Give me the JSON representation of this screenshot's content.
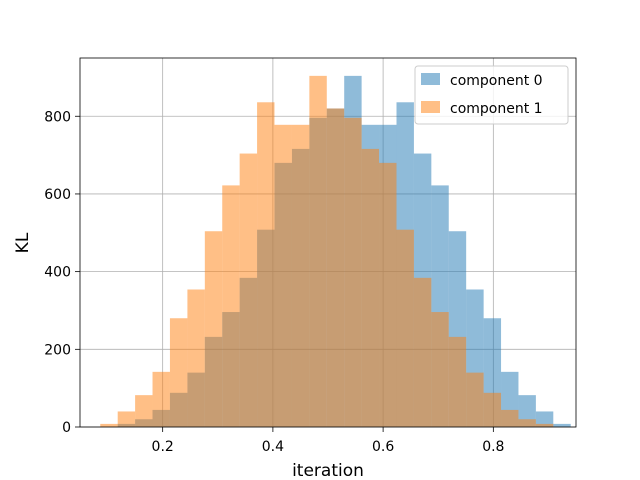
{
  "chart_data": {
    "type": "bar",
    "title": "",
    "xlabel": "iteration",
    "ylabel": "KL",
    "xlim": [
      0.05,
      0.95
    ],
    "ylim": [
      0,
      950
    ],
    "xticks": [
      0.2,
      0.4,
      0.6,
      0.8
    ],
    "xtick_labels": [
      "0.2",
      "0.4",
      "0.6",
      "0.8"
    ],
    "yticks": [
      0,
      200,
      400,
      600,
      800
    ],
    "ytick_labels": [
      "0",
      "200",
      "400",
      "600",
      "800"
    ],
    "grid": true,
    "legend_position": "top-right",
    "alpha": 0.5,
    "series": [
      {
        "name": "component 0",
        "color": "#1f77b4",
        "bins": [
          {
            "x0": 0.1184,
            "x1": 0.15,
            "y": 8
          },
          {
            "x0": 0.15,
            "x1": 0.1816,
            "y": 20
          },
          {
            "x0": 0.1816,
            "x1": 0.2132,
            "y": 44
          },
          {
            "x0": 0.2132,
            "x1": 0.2449,
            "y": 88
          },
          {
            "x0": 0.2449,
            "x1": 0.2765,
            "y": 140
          },
          {
            "x0": 0.2765,
            "x1": 0.3081,
            "y": 232
          },
          {
            "x0": 0.3081,
            "x1": 0.3397,
            "y": 296
          },
          {
            "x0": 0.3397,
            "x1": 0.3713,
            "y": 384
          },
          {
            "x0": 0.3713,
            "x1": 0.4029,
            "y": 508
          },
          {
            "x0": 0.4029,
            "x1": 0.4346,
            "y": 680
          },
          {
            "x0": 0.4346,
            "x1": 0.4662,
            "y": 716
          },
          {
            "x0": 0.4662,
            "x1": 0.4978,
            "y": 796
          },
          {
            "x0": 0.4978,
            "x1": 0.5294,
            "y": 820
          },
          {
            "x0": 0.5294,
            "x1": 0.561,
            "y": 904
          },
          {
            "x0": 0.561,
            "x1": 0.5926,
            "y": 778
          },
          {
            "x0": 0.5926,
            "x1": 0.6243,
            "y": 778
          },
          {
            "x0": 0.6243,
            "x1": 0.6559,
            "y": 836
          },
          {
            "x0": 0.6559,
            "x1": 0.6875,
            "y": 704
          },
          {
            "x0": 0.6875,
            "x1": 0.7191,
            "y": 622
          },
          {
            "x0": 0.7191,
            "x1": 0.7507,
            "y": 504
          },
          {
            "x0": 0.7507,
            "x1": 0.7824,
            "y": 354
          },
          {
            "x0": 0.7824,
            "x1": 0.814,
            "y": 280
          },
          {
            "x0": 0.814,
            "x1": 0.8456,
            "y": 142
          },
          {
            "x0": 0.8456,
            "x1": 0.8772,
            "y": 82
          },
          {
            "x0": 0.8772,
            "x1": 0.9088,
            "y": 40
          },
          {
            "x0": 0.9088,
            "x1": 0.9404,
            "y": 8
          }
        ]
      },
      {
        "name": "component 1",
        "color": "#ff7f0e",
        "bins": [
          {
            "x0": 0.0868,
            "x1": 0.1184,
            "y": 8
          },
          {
            "x0": 0.1184,
            "x1": 0.15,
            "y": 40
          },
          {
            "x0": 0.15,
            "x1": 0.1816,
            "y": 82
          },
          {
            "x0": 0.1816,
            "x1": 0.2132,
            "y": 142
          },
          {
            "x0": 0.2132,
            "x1": 0.2449,
            "y": 280
          },
          {
            "x0": 0.2449,
            "x1": 0.2765,
            "y": 354
          },
          {
            "x0": 0.2765,
            "x1": 0.3081,
            "y": 504
          },
          {
            "x0": 0.3081,
            "x1": 0.3397,
            "y": 622
          },
          {
            "x0": 0.3397,
            "x1": 0.3713,
            "y": 704
          },
          {
            "x0": 0.3713,
            "x1": 0.4029,
            "y": 836
          },
          {
            "x0": 0.4029,
            "x1": 0.4346,
            "y": 778
          },
          {
            "x0": 0.4346,
            "x1": 0.4662,
            "y": 778
          },
          {
            "x0": 0.4662,
            "x1": 0.4978,
            "y": 904
          },
          {
            "x0": 0.4978,
            "x1": 0.5294,
            "y": 820
          },
          {
            "x0": 0.5294,
            "x1": 0.561,
            "y": 796
          },
          {
            "x0": 0.561,
            "x1": 0.5926,
            "y": 716
          },
          {
            "x0": 0.5926,
            "x1": 0.6243,
            "y": 680
          },
          {
            "x0": 0.6243,
            "x1": 0.6559,
            "y": 508
          },
          {
            "x0": 0.6559,
            "x1": 0.6875,
            "y": 384
          },
          {
            "x0": 0.6875,
            "x1": 0.7191,
            "y": 296
          },
          {
            "x0": 0.7191,
            "x1": 0.7507,
            "y": 232
          },
          {
            "x0": 0.7507,
            "x1": 0.7824,
            "y": 140
          },
          {
            "x0": 0.7824,
            "x1": 0.814,
            "y": 88
          },
          {
            "x0": 0.814,
            "x1": 0.8456,
            "y": 44
          },
          {
            "x0": 0.8456,
            "x1": 0.8772,
            "y": 20
          },
          {
            "x0": 0.8772,
            "x1": 0.9088,
            "y": 8
          }
        ]
      }
    ]
  }
}
